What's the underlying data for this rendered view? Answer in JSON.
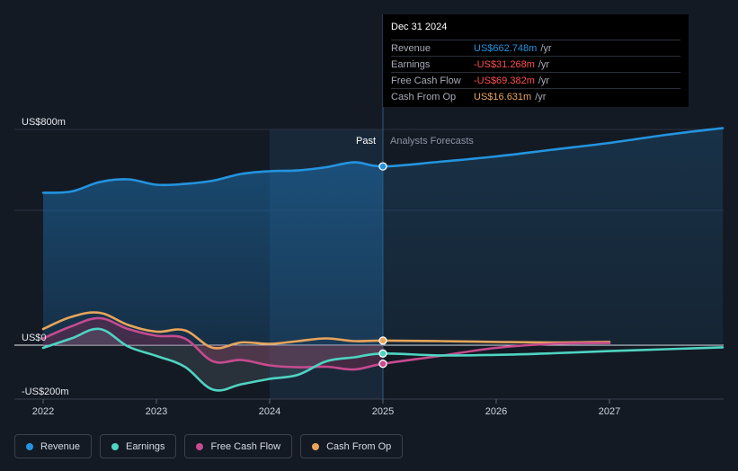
{
  "chart_data": {
    "type": "line",
    "title": "",
    "xlabel": "",
    "ylabel": "",
    "x_ticks": [
      "2022",
      "2023",
      "2024",
      "2025",
      "2026",
      "2027"
    ],
    "y_ticks": [
      {
        "value": 800,
        "label": "US$800m"
      },
      {
        "value": 0,
        "label": "US$0"
      },
      {
        "value": -200,
        "label": "-US$200m"
      }
    ],
    "ylim": [
      -200,
      800
    ],
    "xlim": [
      2022.0,
      2028.0
    ],
    "divider": {
      "x": 2025.0,
      "past_label": "Past",
      "forecast_label": "Analysts Forecasts"
    },
    "series": [
      {
        "name": "Revenue",
        "color": "#2394df",
        "points": [
          [
            2022.0,
            565
          ],
          [
            2022.25,
            570
          ],
          [
            2022.5,
            605
          ],
          [
            2022.75,
            615
          ],
          [
            2023.0,
            595
          ],
          [
            2023.25,
            598
          ],
          [
            2023.5,
            610
          ],
          [
            2023.75,
            635
          ],
          [
            2024.0,
            645
          ],
          [
            2024.25,
            648
          ],
          [
            2024.5,
            660
          ],
          [
            2024.75,
            678
          ],
          [
            2025.0,
            663
          ],
          [
            2025.5,
            680
          ],
          [
            2026.0,
            700
          ],
          [
            2026.5,
            725
          ],
          [
            2027.0,
            750
          ],
          [
            2027.5,
            780
          ],
          [
            2028.0,
            805
          ]
        ],
        "marker": [
          2025.0,
          663
        ]
      },
      {
        "name": "Earnings",
        "color": "#4ed4c2",
        "points": [
          [
            2022.0,
            -10
          ],
          [
            2022.25,
            25
          ],
          [
            2022.5,
            60
          ],
          [
            2022.75,
            -5
          ],
          [
            2023.0,
            -40
          ],
          [
            2023.25,
            -80
          ],
          [
            2023.5,
            -165
          ],
          [
            2023.75,
            -145
          ],
          [
            2024.0,
            -125
          ],
          [
            2024.25,
            -110
          ],
          [
            2024.5,
            -60
          ],
          [
            2024.75,
            -45
          ],
          [
            2025.0,
            -31
          ],
          [
            2025.5,
            -38
          ],
          [
            2026.0,
            -36
          ],
          [
            2026.5,
            -30
          ],
          [
            2027.0,
            -22
          ],
          [
            2027.5,
            -15
          ],
          [
            2028.0,
            -8
          ]
        ],
        "marker": [
          2025.0,
          -31
        ]
      },
      {
        "name": "Free Cash Flow",
        "color": "#c64b8f",
        "points": [
          [
            2022.0,
            25
          ],
          [
            2022.25,
            70
          ],
          [
            2022.5,
            100
          ],
          [
            2022.75,
            60
          ],
          [
            2023.0,
            35
          ],
          [
            2023.25,
            25
          ],
          [
            2023.5,
            -60
          ],
          [
            2023.75,
            -55
          ],
          [
            2024.0,
            -75
          ],
          [
            2024.25,
            -82
          ],
          [
            2024.5,
            -80
          ],
          [
            2024.75,
            -90
          ],
          [
            2025.0,
            -69
          ],
          [
            2025.5,
            -40
          ],
          [
            2026.0,
            -10
          ],
          [
            2026.5,
            5
          ],
          [
            2027.0,
            8
          ]
        ],
        "marker": [
          2025.0,
          -69
        ]
      },
      {
        "name": "Cash From Op",
        "color": "#e8a55b",
        "points": [
          [
            2022.0,
            60
          ],
          [
            2022.25,
            105
          ],
          [
            2022.5,
            120
          ],
          [
            2022.75,
            75
          ],
          [
            2023.0,
            50
          ],
          [
            2023.25,
            55
          ],
          [
            2023.5,
            -10
          ],
          [
            2023.75,
            10
          ],
          [
            2024.0,
            5
          ],
          [
            2024.25,
            15
          ],
          [
            2024.5,
            25
          ],
          [
            2024.75,
            15
          ],
          [
            2025.0,
            17
          ],
          [
            2025.5,
            15
          ],
          [
            2026.0,
            12
          ],
          [
            2026.5,
            10
          ],
          [
            2027.0,
            12
          ]
        ],
        "marker": [
          2025.0,
          17
        ]
      }
    ]
  },
  "tooltip": {
    "date": "Dec 31 2024",
    "rows": [
      {
        "label": "Revenue",
        "value": "US$662.748m",
        "unit": "/yr",
        "color": "#2394df"
      },
      {
        "label": "Earnings",
        "value": "-US$31.268m",
        "unit": "/yr",
        "color": "#ff4d4d"
      },
      {
        "label": "Free Cash Flow",
        "value": "-US$69.382m",
        "unit": "/yr",
        "color": "#ff4d4d"
      },
      {
        "label": "Cash From Op",
        "value": "US$16.631m",
        "unit": "/yr",
        "color": "#e8a55b"
      }
    ]
  },
  "legend": [
    {
      "label": "Revenue",
      "color": "#2394df",
      "name": "legend-item-revenue"
    },
    {
      "label": "Earnings",
      "color": "#4ed4c2",
      "name": "legend-item-earnings"
    },
    {
      "label": "Free Cash Flow",
      "color": "#c64b8f",
      "name": "legend-item-free-cash-flow"
    },
    {
      "label": "Cash From Op",
      "color": "#e8a55b",
      "name": "legend-item-cash-from-op"
    }
  ]
}
